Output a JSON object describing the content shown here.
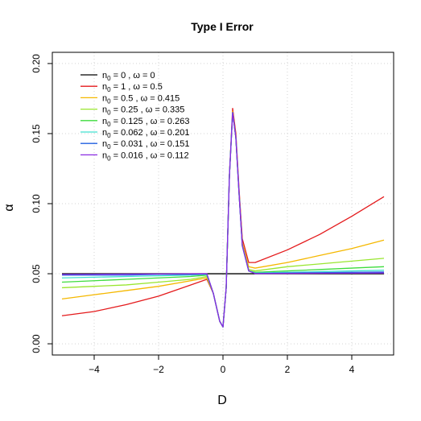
{
  "chart_data": {
    "type": "line",
    "title": "Type I Error",
    "xlabel": "D",
    "ylabel": "α",
    "xlim": [
      -5.3,
      5.3
    ],
    "ylim": [
      -0.008,
      0.208
    ],
    "xticks": [
      -4,
      -2,
      0,
      2,
      4
    ],
    "xtick_labels": [
      "−4",
      "−2",
      "0",
      "2",
      "4"
    ],
    "yticks": [
      0.0,
      0.05,
      0.1,
      0.15,
      0.2
    ],
    "ytick_labels": [
      "0.00",
      "0.05",
      "0.10",
      "0.15",
      "0.20"
    ],
    "grid": true,
    "legend_position": "top-left",
    "series": [
      {
        "n0": "0",
        "omega": "0",
        "color": "#000000",
        "x": [
          -5,
          5
        ],
        "y": [
          0.05,
          0.05
        ]
      },
      {
        "n0": "1",
        "omega": "0.5",
        "color": "#e41a1c",
        "x": [
          -5,
          -4,
          -3,
          -2,
          -1,
          -0.5,
          -0.3,
          -0.1,
          0,
          0.1,
          0.2,
          0.3,
          0.4,
          0.5,
          0.6,
          0.8,
          1,
          2,
          3,
          4,
          5
        ],
        "y": [
          0.02,
          0.023,
          0.028,
          0.034,
          0.042,
          0.046,
          0.036,
          0.016,
          0.012,
          0.04,
          0.12,
          0.168,
          0.15,
          0.11,
          0.075,
          0.058,
          0.058,
          0.067,
          0.078,
          0.091,
          0.105
        ]
      },
      {
        "n0": "0.5",
        "omega": "0.415",
        "color": "#f5b800",
        "x": [
          -5,
          -4,
          -3,
          -2,
          -1,
          -0.5,
          -0.3,
          -0.1,
          0,
          0.1,
          0.2,
          0.3,
          0.4,
          0.5,
          0.6,
          0.8,
          1,
          2,
          3,
          4,
          5
        ],
        "y": [
          0.032,
          0.035,
          0.038,
          0.041,
          0.045,
          0.047,
          0.036,
          0.016,
          0.012,
          0.04,
          0.12,
          0.166,
          0.148,
          0.108,
          0.072,
          0.055,
          0.054,
          0.058,
          0.063,
          0.068,
          0.074
        ]
      },
      {
        "n0": "0.25",
        "omega": "0.335",
        "color": "#99e630",
        "x": [
          -5,
          -4,
          -3,
          -2,
          -1,
          -0.5,
          -0.3,
          -0.1,
          0,
          0.1,
          0.2,
          0.3,
          0.4,
          0.5,
          0.6,
          0.8,
          1,
          2,
          3,
          4,
          5
        ],
        "y": [
          0.04,
          0.041,
          0.042,
          0.044,
          0.046,
          0.048,
          0.036,
          0.016,
          0.012,
          0.04,
          0.12,
          0.165,
          0.147,
          0.107,
          0.071,
          0.053,
          0.052,
          0.055,
          0.057,
          0.059,
          0.061
        ]
      },
      {
        "n0": "0.125",
        "omega": "0.263",
        "color": "#3ddc3d",
        "x": [
          -5,
          -4,
          -3,
          -2,
          -1,
          -0.5,
          -0.3,
          -0.1,
          0,
          0.1,
          0.2,
          0.3,
          0.4,
          0.5,
          0.6,
          0.8,
          1,
          2,
          3,
          4,
          5
        ],
        "y": [
          0.044,
          0.045,
          0.046,
          0.047,
          0.048,
          0.049,
          0.036,
          0.016,
          0.012,
          0.04,
          0.12,
          0.165,
          0.147,
          0.107,
          0.07,
          0.052,
          0.051,
          0.052,
          0.053,
          0.054,
          0.055
        ]
      },
      {
        "n0": "0.062",
        "omega": "0.201",
        "color": "#40e0d0",
        "x": [
          -5,
          -4,
          -3,
          -2,
          -1,
          -0.5,
          -0.3,
          -0.1,
          0,
          0.1,
          0.2,
          0.3,
          0.4,
          0.5,
          0.6,
          0.8,
          1,
          2,
          3,
          4,
          5
        ],
        "y": [
          0.047,
          0.0475,
          0.048,
          0.0485,
          0.049,
          0.0495,
          0.036,
          0.016,
          0.012,
          0.04,
          0.12,
          0.165,
          0.147,
          0.107,
          0.07,
          0.052,
          0.0505,
          0.051,
          0.0515,
          0.052,
          0.0525
        ]
      },
      {
        "n0": "0.031",
        "omega": "0.151",
        "color": "#1f5fe0",
        "x": [
          -5,
          -4,
          -3,
          -2,
          -1,
          -0.5,
          -0.3,
          -0.1,
          0,
          0.1,
          0.2,
          0.3,
          0.4,
          0.5,
          0.6,
          0.8,
          1,
          2,
          3,
          4,
          5
        ],
        "y": [
          0.049,
          0.049,
          0.049,
          0.0495,
          0.0495,
          0.0498,
          0.036,
          0.016,
          0.012,
          0.04,
          0.12,
          0.165,
          0.147,
          0.107,
          0.07,
          0.052,
          0.0502,
          0.0505,
          0.0507,
          0.051,
          0.0512
        ]
      },
      {
        "n0": "0.016",
        "omega": "0.112",
        "color": "#8a2be2",
        "x": [
          -5,
          -4,
          -3,
          -2,
          -1,
          -0.5,
          -0.3,
          -0.1,
          0,
          0.1,
          0.2,
          0.3,
          0.4,
          0.5,
          0.6,
          0.8,
          1,
          2,
          3,
          4,
          5
        ],
        "y": [
          0.0495,
          0.0496,
          0.0497,
          0.0498,
          0.0499,
          0.05,
          0.036,
          0.016,
          0.012,
          0.04,
          0.12,
          0.165,
          0.147,
          0.107,
          0.07,
          0.052,
          0.0501,
          0.0502,
          0.0503,
          0.0504,
          0.0505
        ]
      }
    ]
  }
}
